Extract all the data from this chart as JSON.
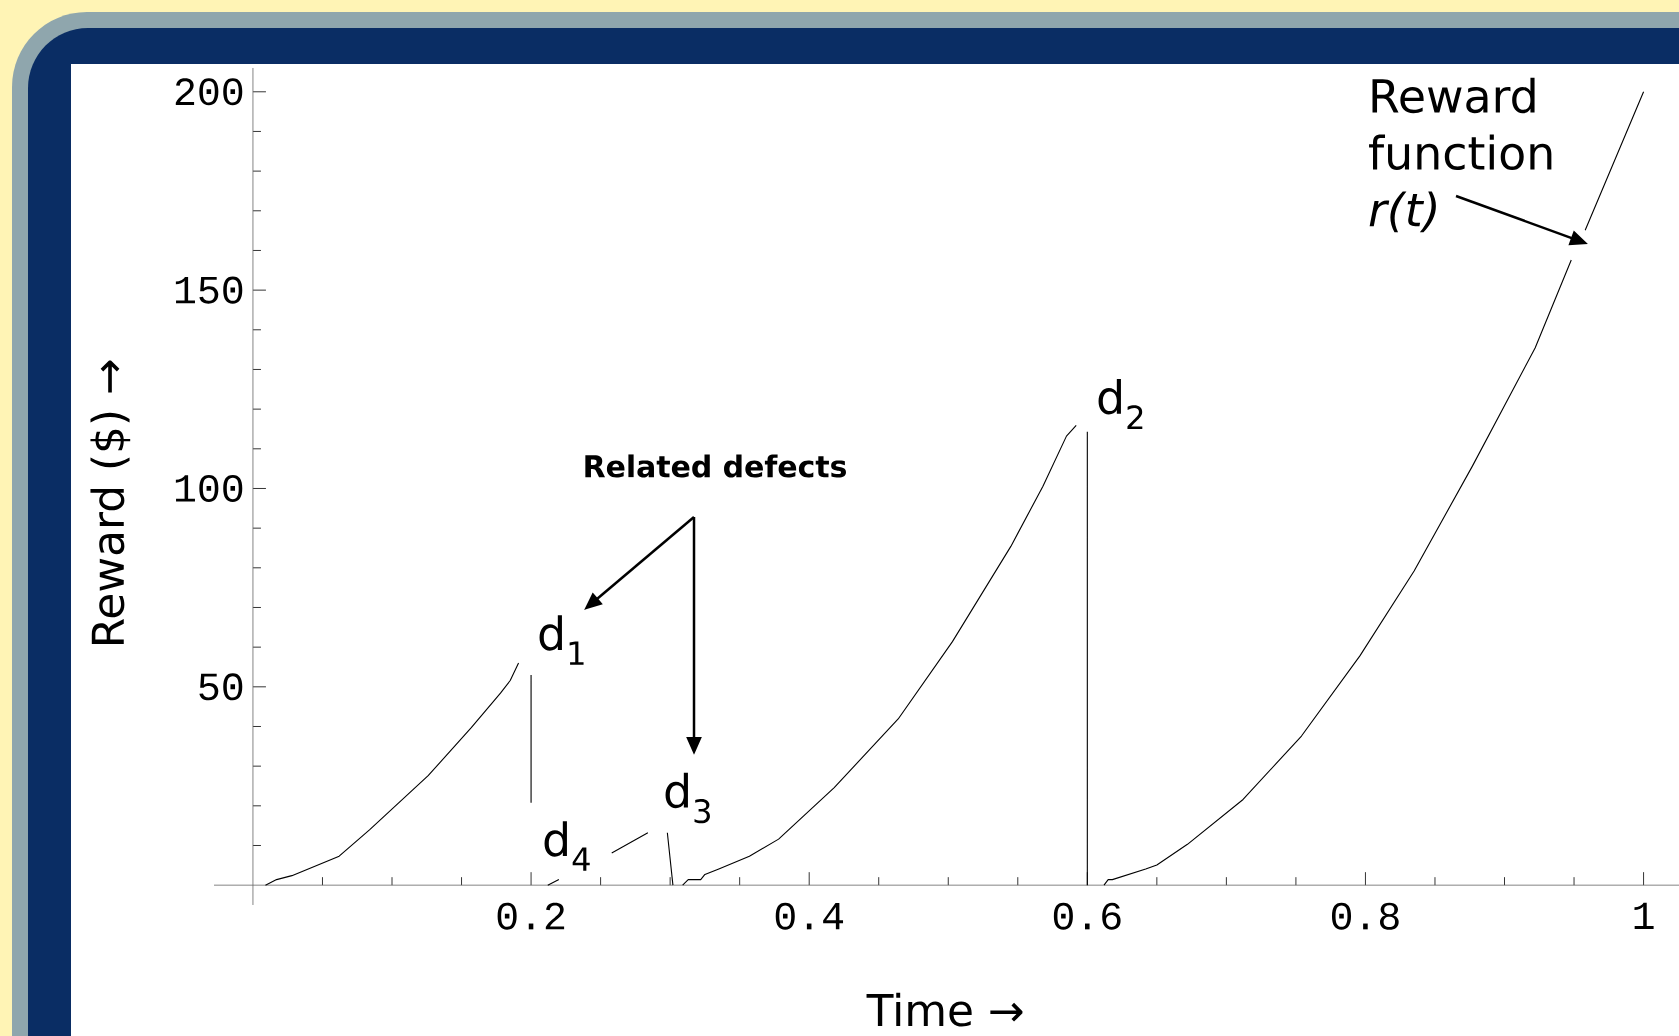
{
  "chart_data": {
    "type": "line",
    "xlabel": "Time →",
    "ylabel": "Reward ($) →",
    "xlim": [
      -0.028,
      1.037
    ],
    "ylim": [
      -5,
      206
    ],
    "xticks": [
      {
        "value": 0.05,
        "label": null
      },
      {
        "value": 0.1,
        "label": null
      },
      {
        "value": 0.15,
        "label": null
      },
      0.2,
      {
        "value": 0.25,
        "label": null
      },
      {
        "value": 0.3,
        "label": null
      },
      {
        "value": 0.35,
        "label": null
      },
      0.4,
      {
        "value": 0.45,
        "label": null
      },
      {
        "value": 0.5,
        "label": null
      },
      {
        "value": 0.55,
        "label": null
      },
      0.6,
      {
        "value": 0.65,
        "label": null
      },
      {
        "value": 0.7,
        "label": null
      },
      {
        "value": 0.75,
        "label": null
      },
      0.8,
      {
        "value": 0.85,
        "label": null
      },
      {
        "value": 0.9,
        "label": null
      },
      {
        "value": 0.95,
        "label": null
      },
      1
    ],
    "yticks": [
      {
        "value": 10,
        "label": null
      },
      {
        "value": 20,
        "label": null
      },
      {
        "value": 30,
        "label": null
      },
      {
        "value": 40,
        "label": null
      },
      50,
      {
        "value": 60,
        "label": null
      },
      {
        "value": 70,
        "label": null
      },
      {
        "value": 80,
        "label": null
      },
      {
        "value": 90,
        "label": null
      },
      100,
      {
        "value": 110,
        "label": null
      },
      {
        "value": 120,
        "label": null
      },
      {
        "value": 130,
        "label": null
      },
      {
        "value": 140,
        "label": null
      },
      150,
      {
        "value": 160,
        "label": null
      },
      {
        "value": 170,
        "label": null
      },
      {
        "value": 180,
        "label": null
      },
      {
        "value": 190,
        "label": null
      },
      200
    ],
    "marker": "none",
    "line_style": "solid",
    "series": [
      {
        "color": "#000000",
        "x": [
          0.009,
          0.017,
          0.028,
          0.062,
          0.084,
          0.126,
          0.157,
          0.178,
          0.185,
          0.191,
          0.195,
          0.2,
          0.2,
          0.206,
          0.212,
          0.22,
          0.24,
          0.258,
          0.284,
          0.29,
          0.298,
          0.302,
          0.305,
          0.309,
          0.313,
          0.322,
          0.325,
          0.335,
          0.357,
          0.378,
          0.418,
          0.464,
          0.503,
          0.545,
          0.568,
          0.585,
          0.592,
          0.596,
          0.6,
          0.6,
          0.606,
          0.612,
          0.615,
          0.618,
          0.642,
          0.65,
          0.672,
          0.712,
          0.754,
          0.796,
          0.835,
          0.877,
          0.922,
          0.948,
          0.953,
          0.958,
          1.0
        ],
        "values": [
          0,
          1.4,
          2.4,
          7.3,
          14,
          27.6,
          39.7,
          48.4,
          51.6,
          56,
          null,
          53,
          20.8,
          null,
          0,
          1.4,
          null,
          8.1,
          13.2,
          null,
          13.2,
          0,
          null,
          0,
          1.4,
          1.4,
          2.7,
          4.1,
          7.3,
          11.6,
          24.6,
          41.9,
          61.4,
          85.4,
          100.5,
          113.2,
          115.9,
          null,
          114.3,
          0,
          null,
          0,
          1.4,
          1.4,
          4.1,
          5.1,
          10.3,
          21.6,
          37.6,
          57.8,
          79.2,
          105.7,
          135.4,
          157.6,
          null,
          165.1,
          200
        ]
      }
    ],
    "annotations": [
      "d$_{1}$",
      "d$_{2}$",
      "d$_{3}$",
      "d$_{4}$",
      "**Related defects**",
      "Reward function *r(t)*"
    ]
  }
}
